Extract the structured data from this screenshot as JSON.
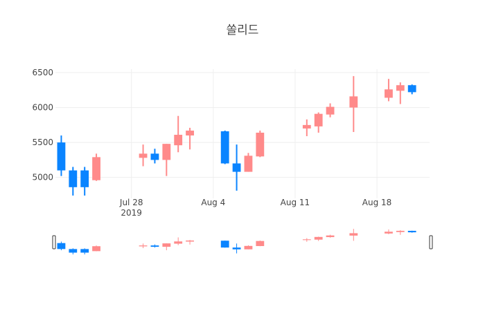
{
  "chart_data": {
    "type": "candlestick",
    "title": "쏠리드",
    "x_ticks": [
      {
        "date": "2019-07-28",
        "label": "Jul 28",
        "sublabel": "2019"
      },
      {
        "date": "2019-08-04",
        "label": "Aug 4",
        "sublabel": ""
      },
      {
        "date": "2019-08-11",
        "label": "Aug 11",
        "sublabel": ""
      },
      {
        "date": "2019-08-18",
        "label": "Aug 18",
        "sublabel": ""
      }
    ],
    "y_ticks": [
      5000,
      5500,
      6000,
      6500
    ],
    "ylim": [
      4700,
      6550
    ],
    "xlim": [
      "2019-07-22",
      "2019-08-22"
    ],
    "grid": true,
    "rangeslider": true,
    "colors": {
      "increasing": "#ff8a8a",
      "decreasing": "#0a84ff",
      "grid": "#eeeeee",
      "text": "#444444"
    },
    "candles": [
      {
        "date": "2019-07-22",
        "open": 5500,
        "high": 5600,
        "low": 5020,
        "close": 5100
      },
      {
        "date": "2019-07-23",
        "open": 5100,
        "high": 5150,
        "low": 4740,
        "close": 4860
      },
      {
        "date": "2019-07-24",
        "open": 5100,
        "high": 5150,
        "low": 4740,
        "close": 4860
      },
      {
        "date": "2019-07-25",
        "open": 4960,
        "high": 5340,
        "low": 4950,
        "close": 5290
      },
      {
        "date": "2019-07-29",
        "open": 5280,
        "high": 5470,
        "low": 5160,
        "close": 5340
      },
      {
        "date": "2019-07-30",
        "open": 5340,
        "high": 5410,
        "low": 5200,
        "close": 5250
      },
      {
        "date": "2019-07-31",
        "open": 5250,
        "high": 5480,
        "low": 5020,
        "close": 5480
      },
      {
        "date": "2019-08-01",
        "open": 5460,
        "high": 5880,
        "low": 5360,
        "close": 5610
      },
      {
        "date": "2019-08-02",
        "open": 5600,
        "high": 5710,
        "low": 5400,
        "close": 5670
      },
      {
        "date": "2019-08-05",
        "open": 5660,
        "high": 5670,
        "low": 5190,
        "close": 5200
      },
      {
        "date": "2019-08-06",
        "open": 5200,
        "high": 5470,
        "low": 4810,
        "close": 5080
      },
      {
        "date": "2019-08-07",
        "open": 5080,
        "high": 5350,
        "low": 5080,
        "close": 5310
      },
      {
        "date": "2019-08-08",
        "open": 5300,
        "high": 5670,
        "low": 5290,
        "close": 5640
      },
      {
        "date": "2019-08-12",
        "open": 5700,
        "high": 5830,
        "low": 5590,
        "close": 5750
      },
      {
        "date": "2019-08-13",
        "open": 5730,
        "high": 5930,
        "low": 5640,
        "close": 5910
      },
      {
        "date": "2019-08-14",
        "open": 5900,
        "high": 6060,
        "low": 5860,
        "close": 6010
      },
      {
        "date": "2019-08-16",
        "open": 6000,
        "high": 6450,
        "low": 5650,
        "close": 6160
      },
      {
        "date": "2019-08-19",
        "open": 6140,
        "high": 6410,
        "low": 6090,
        "close": 6260
      },
      {
        "date": "2019-08-20",
        "open": 6240,
        "high": 6360,
        "low": 6050,
        "close": 6320
      },
      {
        "date": "2019-08-21",
        "open": 6320,
        "high": 6330,
        "low": 6190,
        "close": 6220
      }
    ]
  }
}
